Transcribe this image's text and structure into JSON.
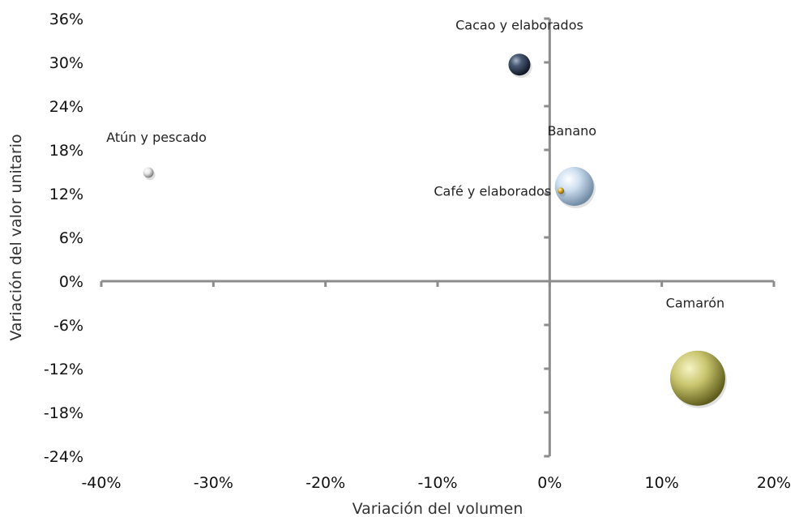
{
  "chart_data": {
    "type": "bubble",
    "xlabel": "Variación del volumen",
    "ylabel": "Variación del valor unitario",
    "xlim": [
      -40,
      20
    ],
    "ylim": [
      -24,
      36
    ],
    "x_ticks": [
      "-40%",
      "-30%",
      "-20%",
      "-10%",
      "0%",
      "10%",
      "20%"
    ],
    "y_ticks": [
      "36%",
      "30%",
      "24%",
      "18%",
      "12%",
      "6%",
      "0%",
      "-6%",
      "-12%",
      "-18%",
      "-24%"
    ],
    "points": [
      {
        "label": "Cacao y elaborados",
        "x": -2.7,
        "y": 29.7,
        "size": 27,
        "color": "#2f3d55"
      },
      {
        "label": "Atún y pescado",
        "x": -35.8,
        "y": 14.9,
        "size": 13,
        "color": "#c8c8c8"
      },
      {
        "label": "Banano",
        "x": 2.2,
        "y": 13.0,
        "size": 48,
        "color": "#b8d2ea"
      },
      {
        "label": "Café y elaborados",
        "x": 1.0,
        "y": 12.4,
        "size": 8,
        "color": "#c9a22a"
      },
      {
        "label": "Camarón",
        "x": 13.2,
        "y": -13.3,
        "size": 68,
        "color": "#c4c26a"
      }
    ]
  }
}
